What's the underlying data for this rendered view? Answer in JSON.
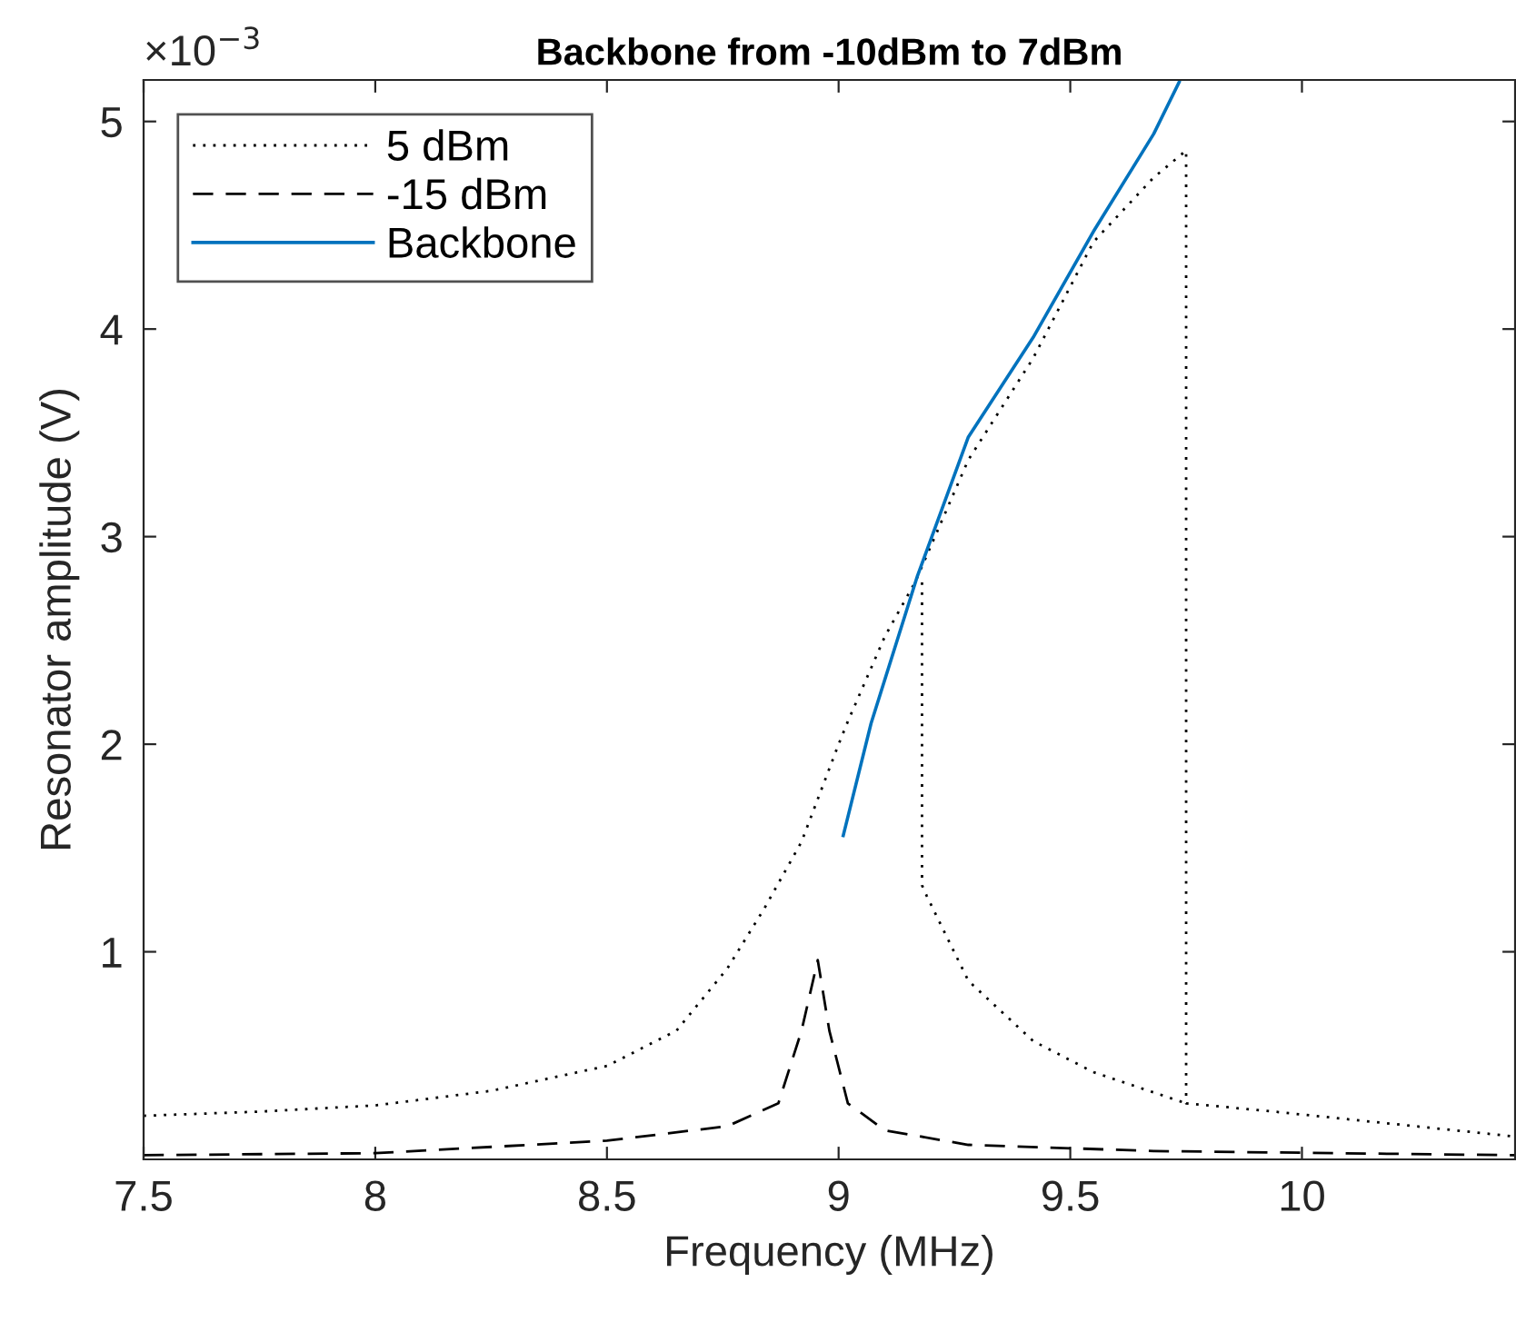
{
  "chart_data": {
    "type": "line",
    "title": "Backbone from -10dBm to 7dBm",
    "xlabel": "Frequency (MHz)",
    "ylabel": "Resonator amplitude (V)",
    "annotations": [
      "×10$^{−3}$"
    ],
    "series": [
      {
        "name": "5 dBm",
        "color": "#000000",
        "line_style": "dotted",
        "x": [
          7.5,
          7.75,
          8.0,
          8.25,
          8.5,
          8.65,
          8.76,
          8.84,
          8.92,
          9.0,
          9.02,
          9.1,
          9.165,
          9.28,
          9.42,
          9.55,
          9.68,
          9.75,
          9.75,
          9.94,
          10.2,
          10.46,
          null,
          9.18,
          9.18,
          9.19,
          9.28,
          9.42,
          9.55,
          9.75
        ],
        "values": [
          0.21,
          0.23,
          0.26,
          0.33,
          0.45,
          0.62,
          0.92,
          1.21,
          1.53,
          2.0,
          2.11,
          2.52,
          2.78,
          3.37,
          3.86,
          4.42,
          4.73,
          4.86,
          0.27,
          0.23,
          0.17,
          0.11,
          null,
          2.78,
          1.32,
          1.27,
          0.86,
          0.57,
          0.42,
          0.27
        ]
      },
      {
        "name": "-15 dBm",
        "color": "#000000",
        "line_style": "dashed",
        "x": [
          7.5,
          8.0,
          8.5,
          8.76,
          8.87,
          8.92,
          8.955,
          8.98,
          9.02,
          9.1,
          9.28,
          9.68,
          10.46
        ],
        "values": [
          0.02,
          0.03,
          0.09,
          0.16,
          0.27,
          0.62,
          0.96,
          0.62,
          0.27,
          0.14,
          0.07,
          0.04,
          0.02
        ]
      },
      {
        "name": "Backbone",
        "color": "#0072bd",
        "line_style": "solid",
        "x": [
          9.01,
          9.07,
          9.17,
          9.28,
          9.42,
          9.55,
          9.68,
          9.735
        ],
        "values": [
          1.56,
          2.1,
          2.81,
          3.48,
          3.96,
          4.47,
          4.94,
          5.19
        ]
      }
    ],
    "xlim": [
      7.5,
      10.46
    ],
    "ylim": [
      0,
      5.2
    ],
    "xticks": [
      7.5,
      8,
      8.5,
      9,
      9.5,
      10
    ],
    "yticks": [
      1,
      2,
      3,
      4,
      5
    ],
    "legend": "top left",
    "grid": false
  }
}
